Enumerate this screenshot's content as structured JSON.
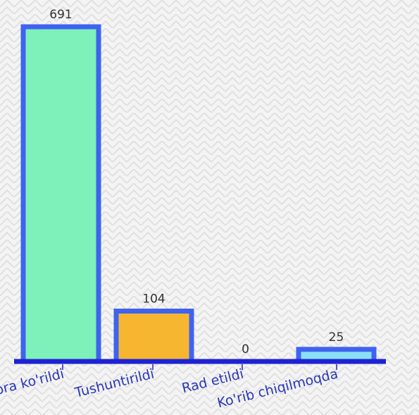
{
  "colors": {
    "background": "#f4f4f4",
    "pattern": "#e2e2e2",
    "axis": "#1e22d2",
    "bar_border": "#3f63f0",
    "value_label": "#333333",
    "category_label": "#2b36b8"
  },
  "chart_data": {
    "type": "bar",
    "title": "",
    "xlabel": "",
    "ylabel": "",
    "ylim": [
      0,
      691
    ],
    "grid": false,
    "categories": [
      "Chora ko'rildi",
      "Tushuntirildi",
      "Rad etildi",
      "Ko'rib chiqilmoqda"
    ],
    "values": [
      691,
      104,
      0,
      25
    ],
    "value_labels": [
      "691",
      "104",
      "0",
      "25"
    ],
    "bar_colors": [
      "#7ef0b9",
      "#f6b630",
      "#7ef0b9",
      "#8ae0f2"
    ]
  }
}
